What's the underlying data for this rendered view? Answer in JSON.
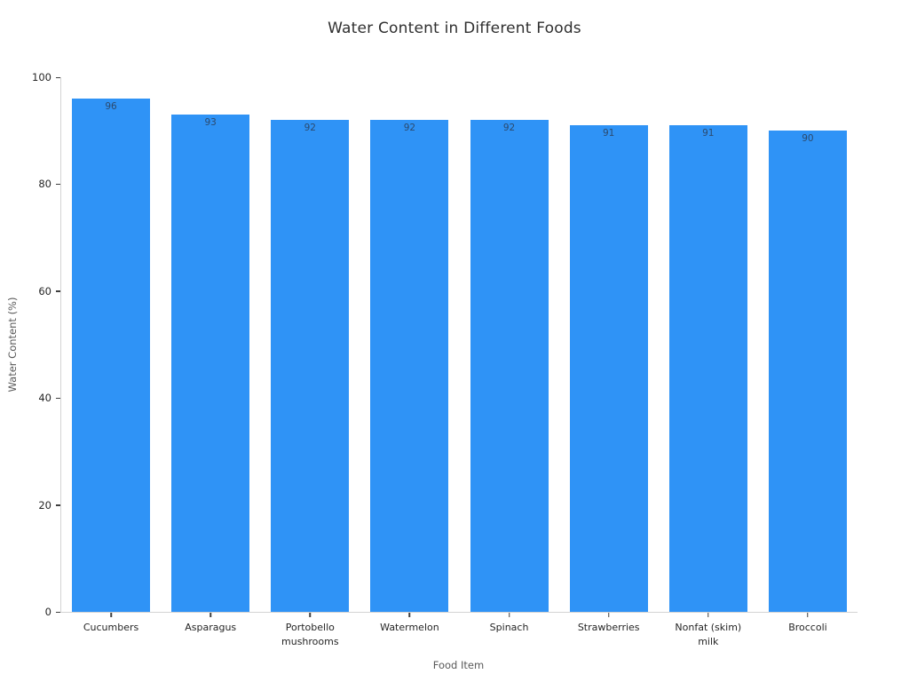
{
  "chart_data": {
    "type": "bar",
    "title": "Water Content in Different Foods",
    "xlabel": "Food Item",
    "ylabel": "Water Content (%)",
    "categories": [
      "Cucumbers",
      "Asparagus",
      "Portobello mushrooms",
      "Watermelon",
      "Spinach",
      "Strawberries",
      "Nonfat (skim) milk",
      "Broccoli"
    ],
    "values": [
      96,
      93,
      92,
      92,
      92,
      91,
      91,
      90
    ],
    "xtick_labels": [
      "Cucumbers",
      "Asparagus",
      "Portobello\nmushrooms",
      "Watermelon",
      "Spinach",
      "Strawberries",
      "Nonfat (skim)\nmilk",
      "Broccoli"
    ],
    "yticks": [
      0,
      20,
      40,
      60,
      80,
      100
    ],
    "ylim": [
      0,
      100
    ],
    "grid": false,
    "legend_position": "none",
    "bar_value_labels": true,
    "colors": {
      "bar": "#2f93f6",
      "value_label": "#2c4a6e",
      "tick_label": "#262626",
      "axis_title": "#595959",
      "title": "#2f2f2f",
      "spine": "#d4d4d4",
      "background": "#ffffff"
    }
  }
}
